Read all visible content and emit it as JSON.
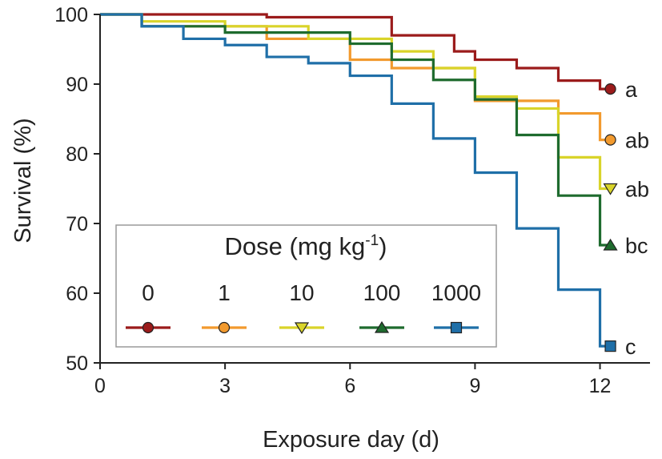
{
  "chart_data": {
    "type": "line",
    "step": true,
    "title": "",
    "xlabel": "Exposure day (d)",
    "ylabel": "Survival (%)",
    "xlim": [
      0,
      13.2
    ],
    "ylim": [
      50,
      100
    ],
    "xticks": [
      0,
      3,
      6,
      9,
      12
    ],
    "yticks": [
      50,
      60,
      70,
      80,
      90,
      100
    ],
    "grid": false,
    "legend": {
      "title_main": "Dose (mg kg",
      "title_sup": "-1",
      "title_close": ")",
      "placement": "bottom-left"
    },
    "series": [
      {
        "name": "0",
        "color": "#9b1b1b",
        "marker": "circle",
        "letter": "a",
        "x": [
          0,
          4,
          7,
          8.5,
          9,
          10,
          11,
          12
        ],
        "y": [
          100,
          99.6,
          97.0,
          94.7,
          93.5,
          92.3,
          90.5,
          89.3
        ]
      },
      {
        "name": "1",
        "color": "#f29a2e",
        "marker": "circle",
        "letter": "ab",
        "x": [
          0,
          1,
          4,
          6,
          7,
          9,
          11,
          12
        ],
        "y": [
          100,
          98.3,
          96.5,
          93.5,
          92.3,
          87.6,
          85.8,
          82.0
        ]
      },
      {
        "name": "10",
        "color": "#d9d42a",
        "marker": "triangle-down",
        "letter": "ab",
        "x": [
          0,
          1,
          3,
          5,
          7,
          8,
          9,
          10,
          11,
          12
        ],
        "y": [
          100,
          99.0,
          98.3,
          96.5,
          94.7,
          92.3,
          88.2,
          86.5,
          79.5,
          75.0
        ]
      },
      {
        "name": "100",
        "color": "#1e6b2e",
        "marker": "triangle-up",
        "letter": "bc",
        "x": [
          0,
          1,
          3,
          6,
          7,
          8,
          9,
          10,
          11,
          12
        ],
        "y": [
          100,
          98.3,
          97.4,
          95.8,
          93.5,
          90.6,
          87.8,
          82.7,
          74.0,
          66.9
        ]
      },
      {
        "name": "1000",
        "color": "#1f6fa8",
        "marker": "square",
        "letter": "c",
        "x": [
          0,
          1,
          2,
          3,
          4,
          5,
          6,
          7,
          8,
          9,
          10,
          11,
          12
        ],
        "y": [
          100,
          98.3,
          96.5,
          95.6,
          93.9,
          93.0,
          91.2,
          87.2,
          82.2,
          77.3,
          69.3,
          60.5,
          52.4
        ]
      }
    ]
  }
}
